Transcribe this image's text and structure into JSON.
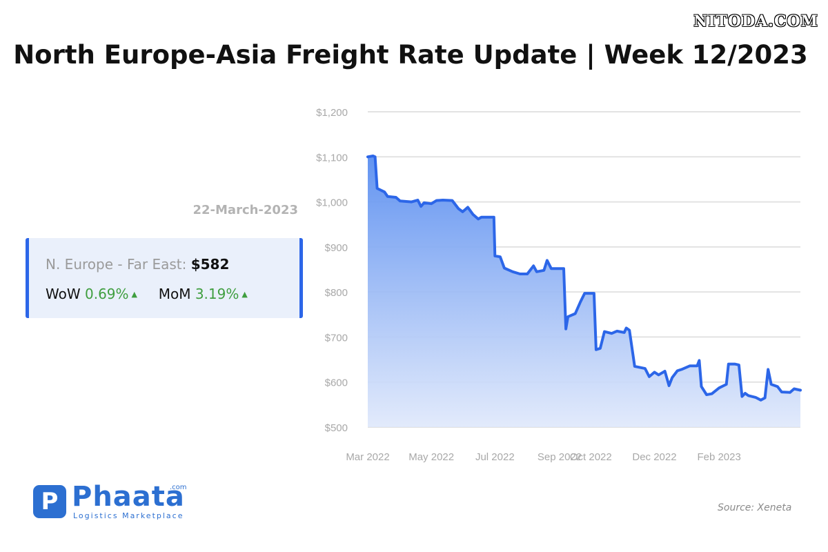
{
  "watermark": "NITODA.COM",
  "title": "North Europe-Asia Freight Rate Update | Week 12/2023",
  "date": "22-March-2023",
  "card": {
    "route": "N. Europe - Far East:",
    "price": "$582",
    "wow_label": "WoW",
    "wow_value": "0.69%",
    "mom_label": "MoM",
    "mom_value": "3.19%",
    "trend_icon": "up-triangle-icon"
  },
  "logo": {
    "name": "Phaata",
    "com": ".com",
    "tagline": "Logistics Marketplace",
    "mark": "P"
  },
  "source": "Source: Xeneta",
  "colors": {
    "line": "#2c66e8",
    "accent": "#2c66e8",
    "positive": "#3f9e3f",
    "card_bg": "#eaf0fb"
  },
  "chart_data": {
    "type": "area",
    "title": "",
    "xlabel": "",
    "ylabel": "",
    "ylim": [
      500,
      1200
    ],
    "yticks": [
      500,
      600,
      700,
      800,
      900,
      1000,
      1100,
      1200
    ],
    "ytick_labels": [
      "$500",
      "$600",
      "$700",
      "$800",
      "$900",
      "$1,000",
      "$1,100",
      "$1,200"
    ],
    "xtick_labels": [
      "Mar 2022",
      "May 2022",
      "Jul 2022",
      "Sep 2022",
      "Oct 2022",
      "Dec 2022",
      "Feb 2023"
    ],
    "xtick_dates": [
      "2022-03-01",
      "2022-05-01",
      "2022-07-01",
      "2022-09-01",
      "2022-10-01",
      "2022-12-01",
      "2023-02-01"
    ],
    "grid": true,
    "series": [
      {
        "points": [
          [
            "2022-03-01",
            1100
          ],
          [
            "2022-03-06",
            1102
          ],
          [
            "2022-03-08",
            1100
          ],
          [
            "2022-03-10",
            1030
          ],
          [
            "2022-03-17",
            1022
          ],
          [
            "2022-03-20",
            1012
          ],
          [
            "2022-03-28",
            1010
          ],
          [
            "2022-04-01",
            1002
          ],
          [
            "2022-04-12",
            1000
          ],
          [
            "2022-04-18",
            1004
          ],
          [
            "2022-04-21",
            990
          ],
          [
            "2022-04-24",
            998
          ],
          [
            "2022-05-01",
            996
          ],
          [
            "2022-05-06",
            1003
          ],
          [
            "2022-05-12",
            1004
          ],
          [
            "2022-05-21",
            1003
          ],
          [
            "2022-05-27",
            985
          ],
          [
            "2022-05-31",
            978
          ],
          [
            "2022-06-05",
            988
          ],
          [
            "2022-06-10",
            972
          ],
          [
            "2022-06-15",
            962
          ],
          [
            "2022-06-18",
            966
          ],
          [
            "2022-06-30",
            966
          ],
          [
            "2022-07-01",
            880
          ],
          [
            "2022-07-06",
            878
          ],
          [
            "2022-07-10",
            853
          ],
          [
            "2022-07-18",
            845
          ],
          [
            "2022-07-25",
            840
          ],
          [
            "2022-08-01",
            840
          ],
          [
            "2022-08-07",
            858
          ],
          [
            "2022-08-10",
            845
          ],
          [
            "2022-08-17",
            848
          ],
          [
            "2022-08-20",
            870
          ],
          [
            "2022-08-24",
            852
          ],
          [
            "2022-09-05",
            852
          ],
          [
            "2022-09-07",
            718
          ],
          [
            "2022-09-09",
            745
          ],
          [
            "2022-09-16",
            752
          ],
          [
            "2022-09-21",
            778
          ],
          [
            "2022-09-25",
            797
          ],
          [
            "2022-10-04",
            797
          ],
          [
            "2022-10-06",
            672
          ],
          [
            "2022-10-10",
            675
          ],
          [
            "2022-10-14",
            712
          ],
          [
            "2022-10-21",
            708
          ],
          [
            "2022-10-26",
            713
          ],
          [
            "2022-11-02",
            710
          ],
          [
            "2022-11-04",
            720
          ],
          [
            "2022-11-07",
            715
          ],
          [
            "2022-11-12",
            635
          ],
          [
            "2022-11-22",
            630
          ],
          [
            "2022-11-26",
            612
          ],
          [
            "2022-12-01",
            622
          ],
          [
            "2022-12-05",
            616
          ],
          [
            "2022-12-11",
            624
          ],
          [
            "2022-12-15",
            592
          ],
          [
            "2022-12-18",
            610
          ],
          [
            "2022-12-23",
            625
          ],
          [
            "2022-12-27",
            628
          ],
          [
            "2023-01-04",
            636
          ],
          [
            "2023-01-11",
            636
          ],
          [
            "2023-01-13",
            648
          ],
          [
            "2023-01-15",
            590
          ],
          [
            "2023-01-20",
            572
          ],
          [
            "2023-01-25",
            574
          ],
          [
            "2023-02-01",
            587
          ],
          [
            "2023-02-08",
            595
          ],
          [
            "2023-02-10",
            640
          ],
          [
            "2023-02-16",
            640
          ],
          [
            "2023-02-20",
            638
          ],
          [
            "2023-02-23",
            568
          ],
          [
            "2023-02-26",
            575
          ],
          [
            "2023-03-01",
            570
          ],
          [
            "2023-03-08",
            566
          ],
          [
            "2023-03-13",
            560
          ],
          [
            "2023-03-17",
            565
          ],
          [
            "2023-03-20",
            628
          ],
          [
            "2023-03-23",
            595
          ],
          [
            "2023-03-29",
            590
          ],
          [
            "2023-04-02",
            578
          ],
          [
            "2023-04-10",
            577
          ],
          [
            "2023-04-14",
            585
          ],
          [
            "2023-04-20",
            582
          ]
        ]
      }
    ]
  }
}
